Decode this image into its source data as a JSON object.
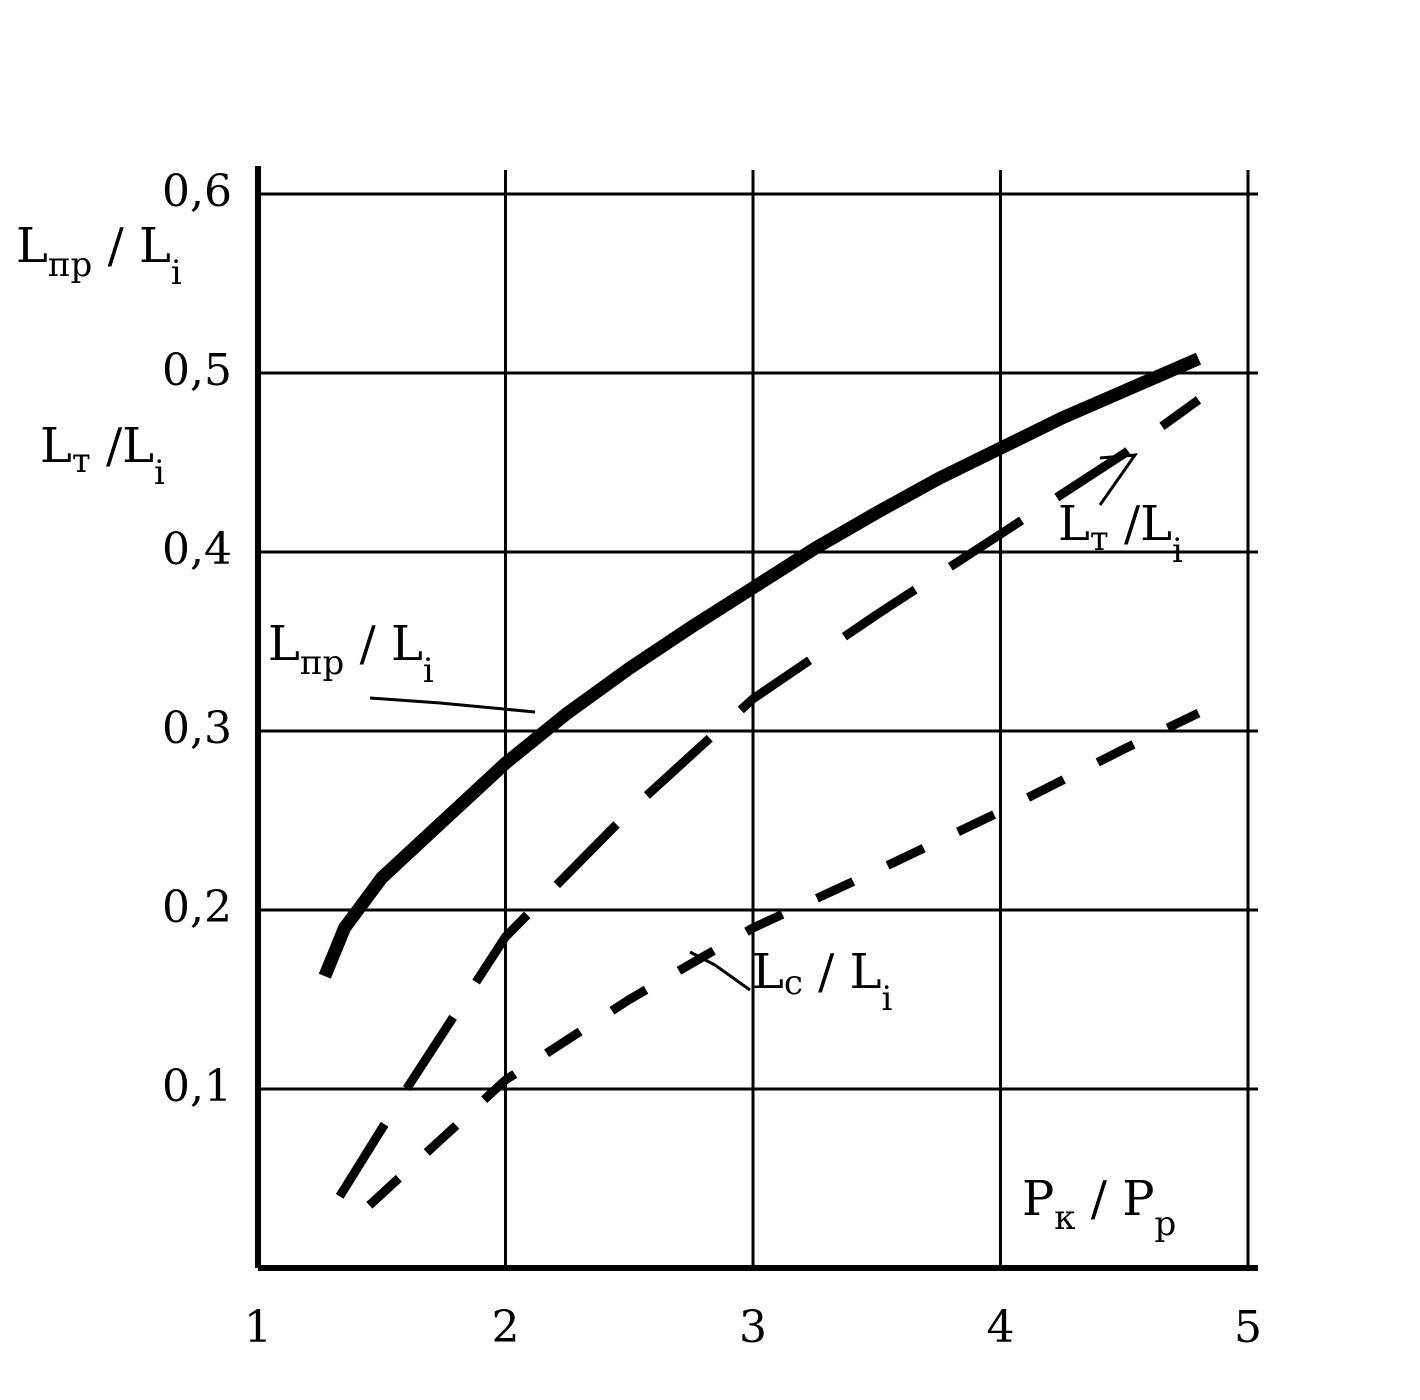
{
  "chart_data": {
    "type": "line",
    "xlim": [
      1,
      5
    ],
    "ylim": [
      0,
      0.6
    ],
    "x_ticks": [
      "1",
      "2",
      "3",
      "4",
      "5"
    ],
    "y_ticks": [
      "0,1",
      "0,2",
      "0,3",
      "0,4",
      "0,5",
      "0,6"
    ],
    "grid": true,
    "xlabel": {
      "main": "P",
      "sub1": "к",
      "sep": " / ",
      "main2": "P",
      "sub2": "p"
    },
    "ylabels": [
      {
        "main": "L",
        "sub1": "пр",
        "sep": " / ",
        "main2": "L",
        "sub2": "i"
      },
      {
        "main": "L",
        "sub1": "т",
        "sep": " /",
        "main2": "L",
        "sub2": "i"
      }
    ],
    "series": [
      {
        "name_parts": {
          "main": "L",
          "sub1": "пр",
          "sep": " / ",
          "main2": "L",
          "sub2": "i"
        },
        "style": "solid-thick",
        "x": [
          1.27,
          1.35,
          1.5,
          1.75,
          2.0,
          2.25,
          2.5,
          2.75,
          3.0,
          3.25,
          3.5,
          3.75,
          4.0,
          4.25,
          4.5,
          4.8
        ],
        "y": [
          0.163,
          0.19,
          0.218,
          0.25,
          0.282,
          0.31,
          0.335,
          0.358,
          0.38,
          0.402,
          0.422,
          0.441,
          0.458,
          0.475,
          0.49,
          0.508
        ]
      },
      {
        "name_parts": {
          "main": "L",
          "sub1": "т",
          "sep": " /",
          "main2": "L",
          "sub2": "i"
        },
        "style": "dash-long",
        "x": [
          1.33,
          1.6,
          2.0,
          2.5,
          3.0,
          3.5,
          4.0,
          4.5,
          4.8
        ],
        "y": [
          0.04,
          0.1,
          0.185,
          0.255,
          0.318,
          0.365,
          0.41,
          0.455,
          0.485
        ]
      },
      {
        "name_parts": {
          "main": "L",
          "sub1": "с",
          "sep": " / ",
          "main2": "L",
          "sub2": "i"
        },
        "style": "dash-short",
        "x": [
          1.45,
          2.0,
          2.5,
          3.0,
          3.5,
          4.0,
          4.5,
          4.8
        ],
        "y": [
          0.035,
          0.105,
          0.15,
          0.19,
          0.222,
          0.255,
          0.29,
          0.31
        ]
      }
    ]
  }
}
